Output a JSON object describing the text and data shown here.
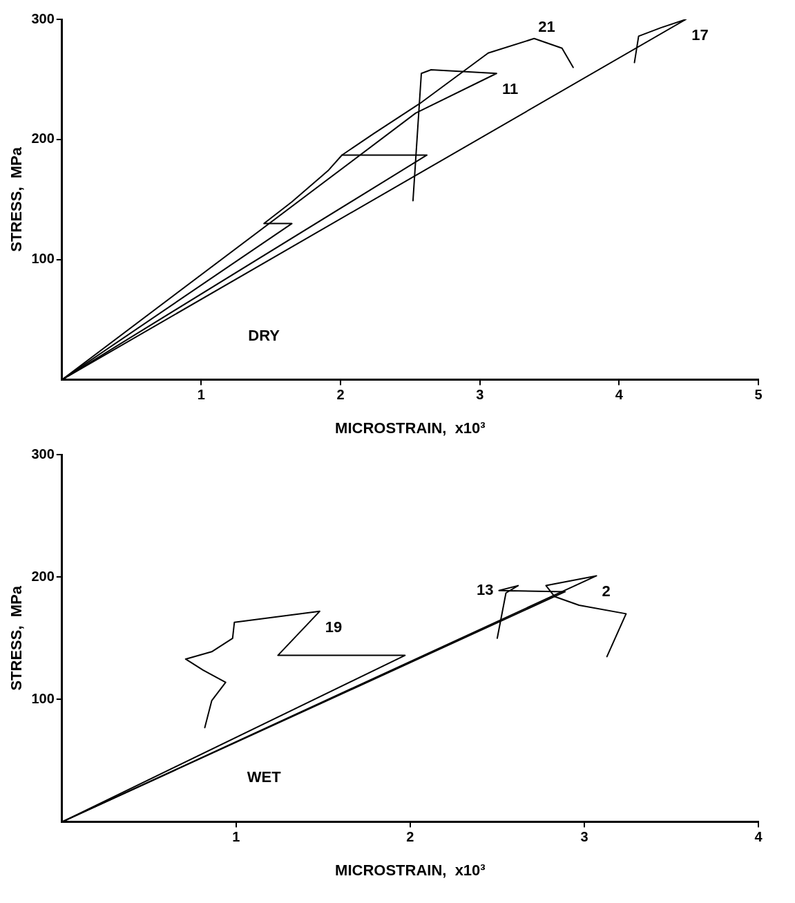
{
  "chart_data": [
    {
      "type": "line",
      "xlabel": "MICROSTRAIN,  x10³",
      "ylabel": "STRESS,  MPa",
      "xlim": [
        0,
        5
      ],
      "xticks": [
        1,
        2,
        3,
        4,
        5
      ],
      "ylim": [
        0,
        300
      ],
      "yticks": [
        100,
        200,
        300
      ],
      "grid": false,
      "legend": false,
      "marker": "none",
      "line_style": "solid",
      "series": [
        {
          "color": "#000000",
          "x": [
            0,
            4.48,
            4.3,
            4.14,
            4.11
          ],
          "values": [
            0,
            300,
            293,
            286,
            264
          ]
        },
        {
          "color": "#000000",
          "x": [
            0,
            2.54,
            3.12,
            2.65,
            2.58,
            2.52
          ],
          "values": [
            0,
            222,
            255,
            258,
            255,
            149
          ]
        },
        {
          "color": "#000000",
          "x": [
            0,
            1.65,
            1.45,
            1.65,
            1.91,
            2.01,
            2.24,
            2.57,
            3.06,
            3.39,
            3.59,
            3.67
          ],
          "values": [
            0,
            130,
            130,
            148,
            174,
            187,
            205,
            230,
            272,
            284,
            276,
            260
          ]
        },
        {
          "color": "#000000",
          "x": [
            0,
            2.62,
            2.01
          ],
          "values": [
            0,
            187,
            187
          ]
        }
      ],
      "annotations": [
        "DRY",
        {
          "text": "17",
          "x": 4.48,
          "y": 300
        },
        {
          "text": "11",
          "x": 3.12,
          "y": 255
        },
        {
          "text": "21",
          "x": 3.39,
          "y": 284
        }
      ]
    },
    {
      "type": "line",
      "xlabel": "MICROSTRAIN,  x10³",
      "ylabel": "STRESS,  MPa",
      "xlim": [
        0,
        4
      ],
      "xticks": [
        1,
        2,
        3,
        4
      ],
      "ylim": [
        0,
        300
      ],
      "yticks": [
        100,
        200,
        300
      ],
      "grid": false,
      "legend": false,
      "marker": "none",
      "line_style": "solid",
      "series": [
        {
          "color": "#000000",
          "x": [
            0,
            3.07,
            2.78,
            2.83,
            2.97,
            3.24,
            3.13
          ],
          "values": [
            0,
            201,
            193,
            184,
            177,
            170,
            135
          ]
        },
        {
          "color": "#000000",
          "x": [
            0,
            2.89,
            2.51,
            2.62,
            2.55,
            2.5
          ],
          "values": [
            0,
            188,
            189,
            193,
            187,
            150
          ]
        },
        {
          "color": "#000000",
          "x": [
            0,
            1.97,
            1.24,
            1.48,
            0.99,
            0.98,
            0.86,
            0.71,
            0.81,
            0.94,
            0.86,
            0.82
          ],
          "values": [
            0,
            136,
            136,
            172,
            163,
            150,
            139,
            133,
            124,
            114,
            99,
            77
          ]
        }
      ],
      "annotations": [
        "WET",
        {
          "text": "2",
          "x": 3.07,
          "y": 201
        },
        {
          "text": "13",
          "x": 2.51,
          "y": 189
        },
        {
          "text": "19",
          "x": 1.48,
          "y": 172
        }
      ]
    }
  ]
}
